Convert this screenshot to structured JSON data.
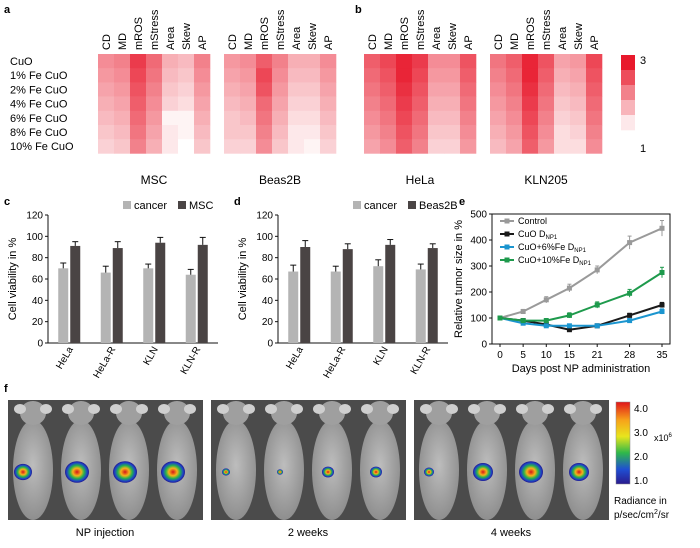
{
  "colors": {
    "heat_high": "#e8192c",
    "heat_low": "#ffffff",
    "cancer_bar": "#b4b4b4",
    "mini_bar": "#4a4444",
    "control": "#9a9a9a",
    "cuo": "#1a1a1a",
    "fe6": "#1b95cf",
    "fe10": "#1e9a4c"
  },
  "panel_labels": {
    "a": "a",
    "b": "b",
    "c": "c",
    "d": "d",
    "e": "e",
    "f": "f"
  },
  "chart_data": [
    {
      "id": "a",
      "type": "heatmap",
      "columns": [
        "CD",
        "MD",
        "mROS",
        "mStress",
        "Area",
        "Skew",
        "AP"
      ],
      "rows": [
        "CuO",
        "1% Fe CuO",
        "2% Fe CuO",
        "4% Fe CuO",
        "6% Fe CuO",
        "8% Fe CuO",
        "10% Fe CuO"
      ],
      "maps": [
        {
          "name": "MSC",
          "values": [
            [
              2.0,
              2.1,
              2.7,
              2.3,
              1.7,
              1.6,
              2.1
            ],
            [
              1.9,
              2.0,
              2.6,
              2.2,
              1.6,
              1.5,
              2.0
            ],
            [
              1.8,
              1.9,
              2.5,
              2.1,
              1.5,
              1.4,
              1.9
            ],
            [
              1.7,
              1.8,
              2.4,
              2.0,
              1.4,
              1.3,
              1.8
            ],
            [
              1.6,
              1.7,
              2.3,
              1.9,
              1.1,
              1.1,
              1.7
            ],
            [
              1.5,
              1.6,
              2.2,
              1.8,
              1.2,
              1.1,
              1.6
            ],
            [
              1.4,
              1.5,
              2.1,
              1.7,
              1.2,
              1.0,
              1.5
            ]
          ]
        },
        {
          "name": "Beas2B",
          "values": [
            [
              1.9,
              2.0,
              2.4,
              2.1,
              1.7,
              1.7,
              2.0
            ],
            [
              1.8,
              1.9,
              2.6,
              2.0,
              1.6,
              1.6,
              1.9
            ],
            [
              1.7,
              1.8,
              2.5,
              1.9,
              1.5,
              1.5,
              1.8
            ],
            [
              1.6,
              1.7,
              2.3,
              1.8,
              1.4,
              1.4,
              1.7
            ],
            [
              1.5,
              1.6,
              2.2,
              1.7,
              1.3,
              1.3,
              1.6
            ],
            [
              1.5,
              1.5,
              2.1,
              1.6,
              1.2,
              1.2,
              1.5
            ],
            [
              1.4,
              1.4,
              2.0,
              1.5,
              1.2,
              1.1,
              1.4
            ]
          ]
        }
      ]
    },
    {
      "id": "b",
      "type": "heatmap",
      "columns": [
        "CD",
        "MD",
        "mROS",
        "mStress",
        "Area",
        "Skew",
        "AP"
      ],
      "maps": [
        {
          "name": "HeLa",
          "values": [
            [
              2.4,
              2.6,
              2.9,
              2.7,
              2.0,
              2.0,
              2.5
            ],
            [
              2.3,
              2.5,
              2.9,
              2.6,
              1.9,
              1.9,
              2.4
            ],
            [
              2.2,
              2.4,
              2.8,
              2.5,
              1.8,
              1.8,
              2.3
            ],
            [
              2.1,
              2.3,
              2.7,
              2.4,
              1.7,
              1.7,
              2.2
            ],
            [
              2.0,
              2.2,
              2.6,
              2.3,
              1.6,
              1.6,
              2.1
            ],
            [
              1.9,
              2.1,
              2.5,
              2.2,
              1.5,
              1.5,
              2.0
            ],
            [
              1.8,
              2.0,
              2.4,
              2.1,
              1.4,
              1.4,
              1.9
            ]
          ]
        },
        {
          "name": "KLN205",
          "values": [
            [
              2.2,
              2.4,
              2.9,
              2.5,
              1.8,
              1.9,
              2.6
            ],
            [
              2.1,
              2.3,
              2.9,
              2.4,
              1.7,
              1.8,
              2.5
            ],
            [
              2.0,
              2.2,
              2.8,
              2.3,
              1.6,
              1.7,
              2.4
            ],
            [
              1.9,
              2.1,
              2.7,
              2.2,
              1.5,
              1.6,
              2.3
            ],
            [
              1.8,
              2.0,
              2.6,
              2.1,
              1.4,
              1.5,
              2.2
            ],
            [
              1.7,
              1.9,
              2.5,
              2.0,
              1.3,
              1.4,
              2.1
            ],
            [
              1.6,
              1.8,
              2.4,
              1.9,
              1.3,
              1.3,
              2.0
            ]
          ]
        }
      ],
      "colorbar": {
        "max_label": "3",
        "min_label": "1",
        "range": [
          1,
          3
        ]
      }
    },
    {
      "id": "c",
      "type": "bar",
      "ylabel": "Cell viability in %",
      "ylim": [
        0,
        120
      ],
      "yticks": [
        "0",
        "20",
        "40",
        "60",
        "80",
        "100",
        "120"
      ],
      "categories": [
        "HeLa",
        "HeLa-R",
        "KLN",
        "KLN-R"
      ],
      "series": [
        {
          "name": "cancer",
          "values": [
            70,
            66,
            70,
            64
          ],
          "errors": [
            5,
            6,
            4,
            5
          ]
        },
        {
          "name": "MSC",
          "values": [
            91,
            89,
            94,
            92
          ],
          "errors": [
            4,
            6,
            5,
            7
          ]
        }
      ]
    },
    {
      "id": "d",
      "type": "bar",
      "ylabel": "Cell viability in %",
      "ylim": [
        0,
        120
      ],
      "yticks": [
        "0",
        "20",
        "40",
        "60",
        "80",
        "100",
        "120"
      ],
      "categories": [
        "HeLa",
        "HeLa-R",
        "KLN",
        "KLN-R"
      ],
      "series": [
        {
          "name": "cancer",
          "values": [
            67,
            67,
            72,
            69
          ],
          "errors": [
            6,
            5,
            6,
            5
          ]
        },
        {
          "name": "Beas2B",
          "values": [
            90,
            88,
            92,
            89
          ],
          "errors": [
            6,
            5,
            5,
            4
          ]
        }
      ]
    },
    {
      "id": "e",
      "type": "line",
      "xlabel": "Days post NP administration",
      "ylabel": "Relative tumor size in %",
      "x": [
        0,
        5,
        10,
        15,
        21,
        28,
        35
      ],
      "xticks": [
        "0",
        "5",
        "10",
        "15",
        "21",
        "28",
        "35"
      ],
      "ylim": [
        0,
        500
      ],
      "yticks": [
        "0",
        "100",
        "200",
        "300",
        "400",
        "500"
      ],
      "series": [
        {
          "name": "Control",
          "key": "control",
          "values": [
            100,
            125,
            170,
            215,
            285,
            390,
            445
          ],
          "errors": [
            6,
            8,
            12,
            15,
            15,
            25,
            30
          ]
        },
        {
          "name": "CuO D",
          "sub": "NP1",
          "key": "cuo",
          "values": [
            100,
            90,
            75,
            55,
            70,
            110,
            150
          ],
          "errors": [
            5,
            6,
            6,
            5,
            6,
            8,
            10
          ]
        },
        {
          "name": "CuO+6%Fe D",
          "sub": "NP1",
          "key": "fe6",
          "values": [
            100,
            80,
            70,
            70,
            70,
            90,
            125
          ],
          "errors": [
            5,
            6,
            6,
            6,
            6,
            7,
            10
          ]
        },
        {
          "name": "CuO+10%Fe D",
          "sub": "NP1",
          "key": "fe10",
          "values": [
            100,
            90,
            90,
            110,
            150,
            195,
            275
          ],
          "errors": [
            5,
            6,
            8,
            10,
            12,
            15,
            20
          ]
        }
      ]
    }
  ],
  "panel_f": {
    "captions": [
      "NP injection",
      "2 weeks",
      "4 weeks"
    ],
    "colorbar": {
      "ticks": [
        "4.0",
        "3.0",
        "2.0",
        "1.0"
      ],
      "exponent": "x10",
      "exponent_power": "6",
      "title_line1": "Radiance in",
      "title_line2": "p/sec/cm",
      "title_power": "2",
      "title_end": "/sr"
    }
  }
}
